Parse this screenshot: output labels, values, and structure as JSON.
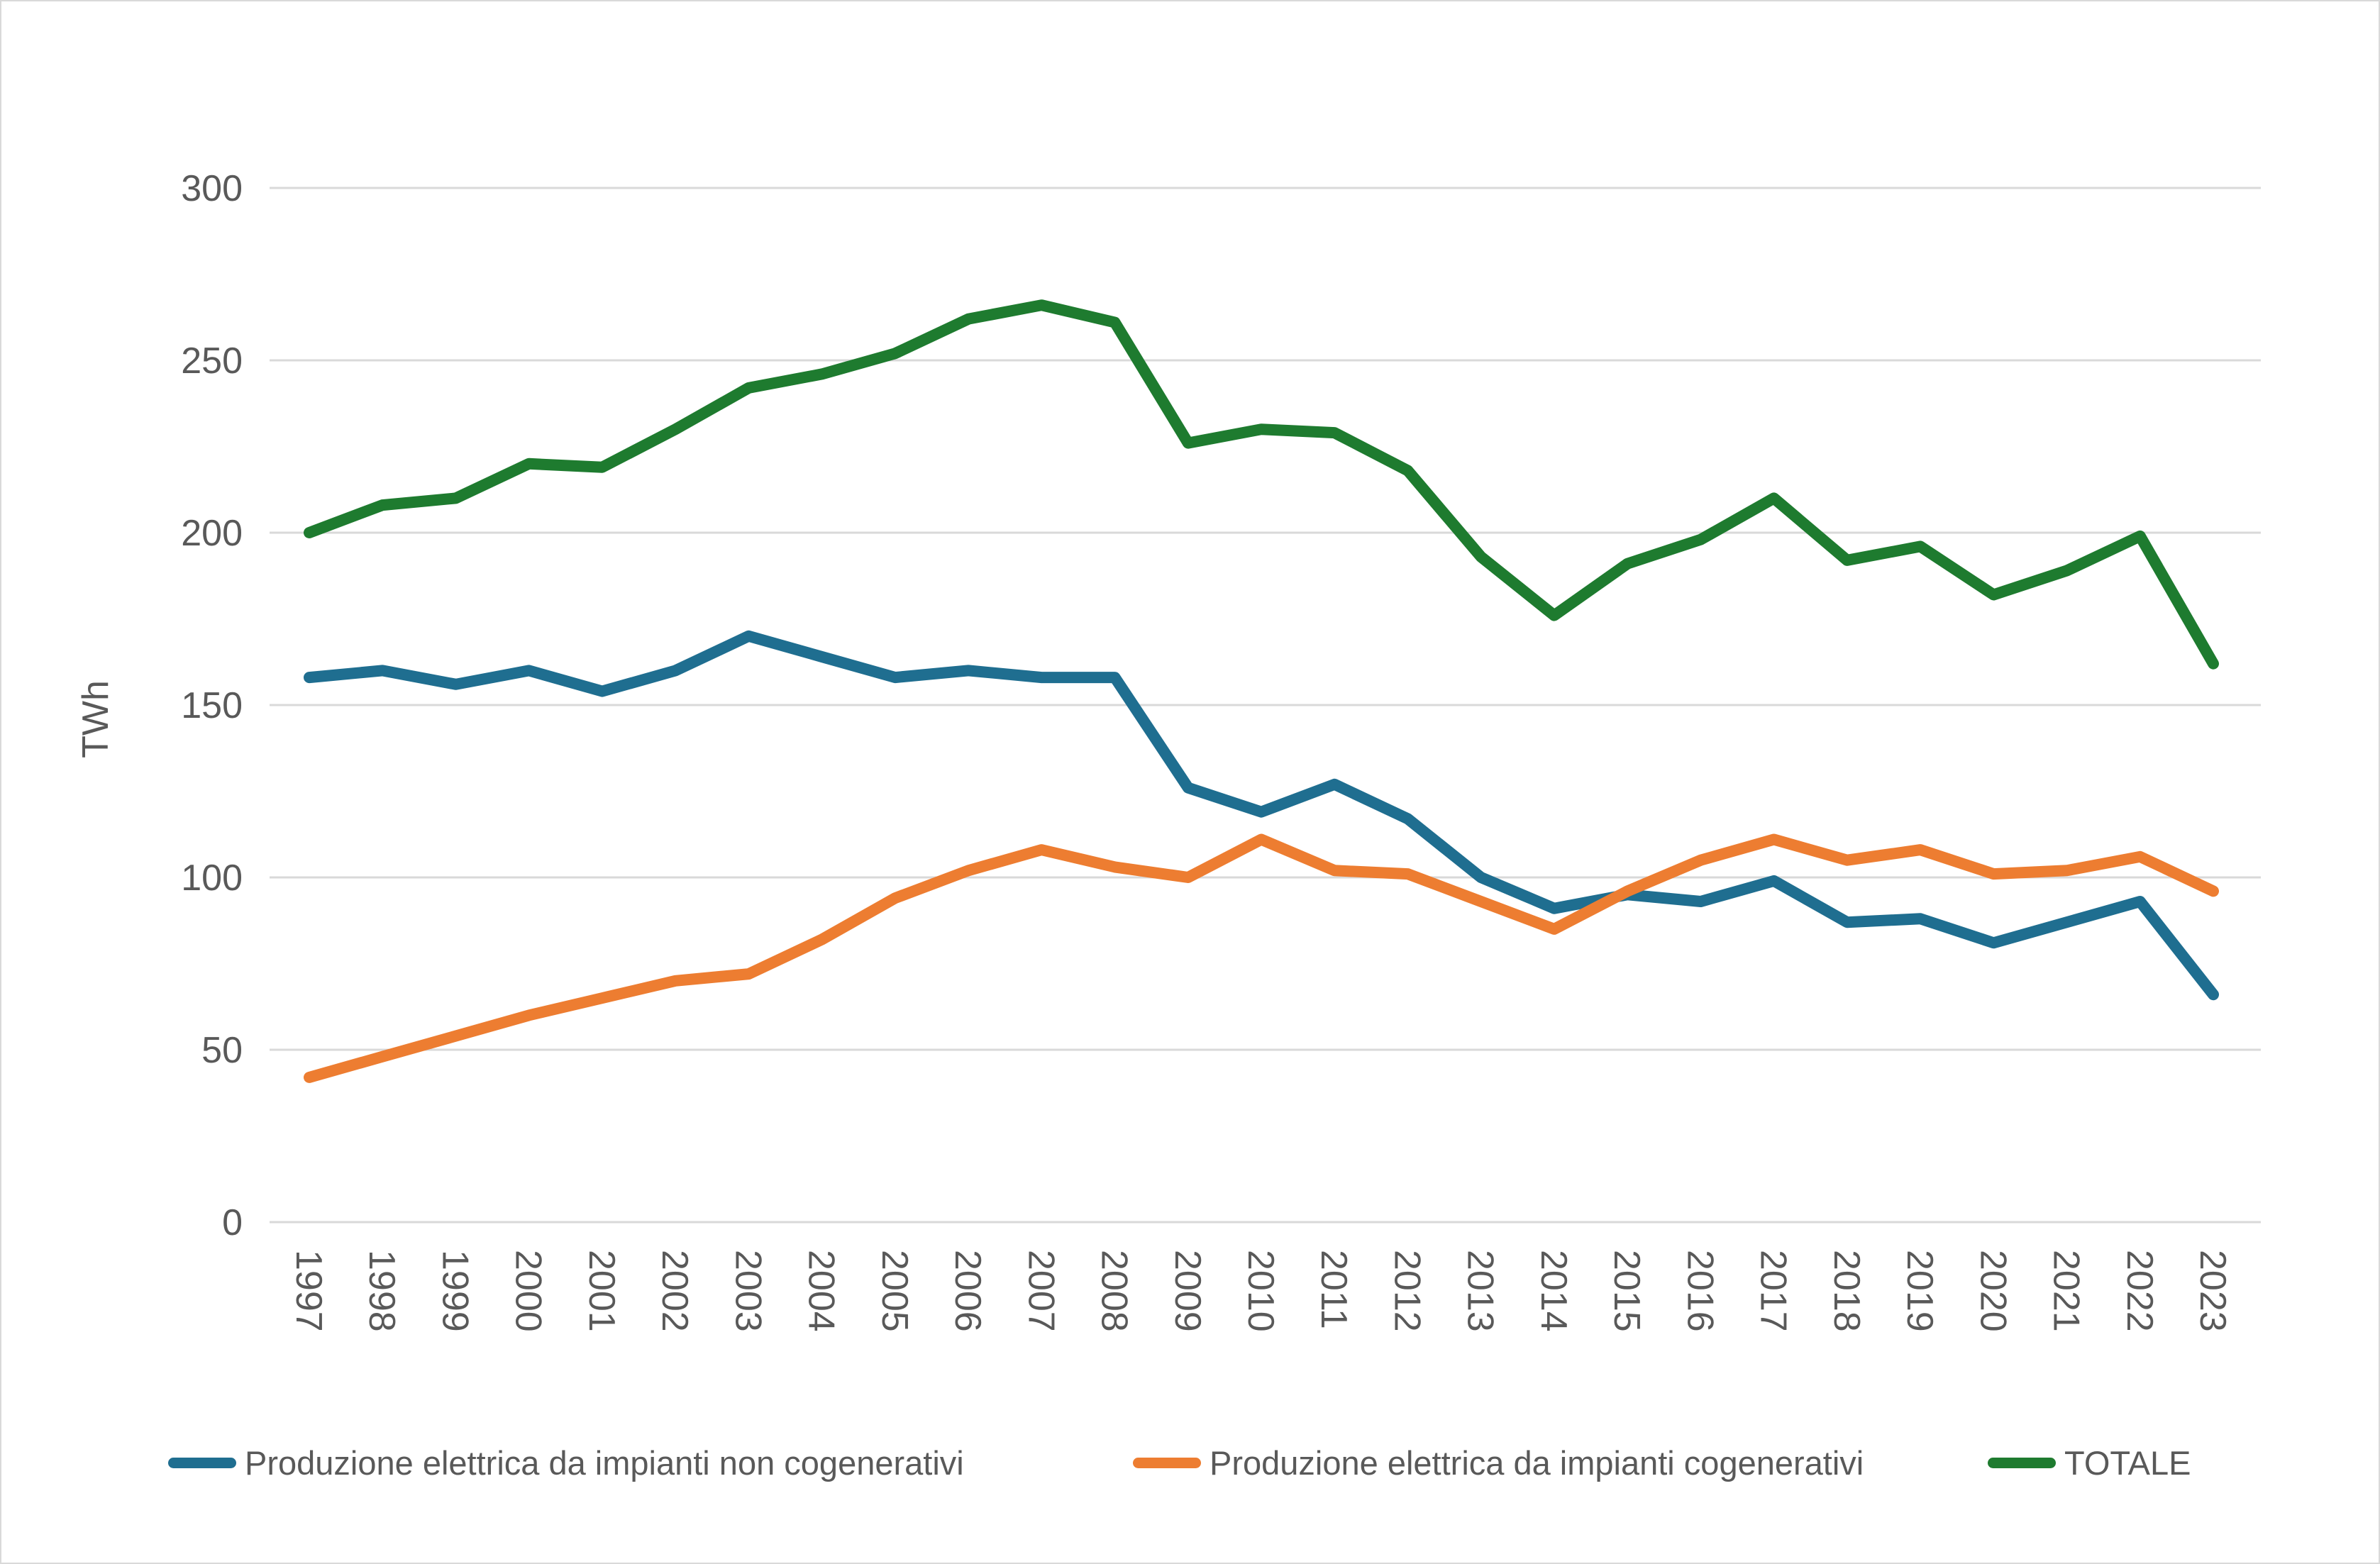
{
  "chart_data": {
    "type": "line",
    "title": "",
    "ylabel": "TWh",
    "xlabel": "",
    "ylim": [
      0,
      300
    ],
    "yticks": [
      0,
      50,
      100,
      150,
      200,
      250,
      300
    ],
    "grid": "horizontal",
    "legend_position": "bottom",
    "axis_text_color": "#595959",
    "gridline_color": "#d9d9d9",
    "x": [
      1997,
      1998,
      1999,
      2000,
      2001,
      2002,
      2003,
      2004,
      2005,
      2006,
      2007,
      2008,
      2009,
      2010,
      2011,
      2012,
      2013,
      2014,
      2015,
      2016,
      2017,
      2018,
      2019,
      2020,
      2021,
      2022,
      2023
    ],
    "series": [
      {
        "name": "Produzione elettrica da impianti non cogenerativi",
        "color": "#1F6E90",
        "values": [
          158,
          160,
          156,
          160,
          154,
          160,
          170,
          164,
          158,
          160,
          158,
          158,
          126,
          119,
          127,
          117,
          100,
          91,
          95,
          93,
          99,
          87,
          88,
          81,
          87,
          93,
          66
        ]
      },
      {
        "name": "Produzione elettrica da impianti cogenerativi",
        "color": "#ED7D31",
        "values": [
          42,
          48,
          54,
          60,
          65,
          70,
          72,
          82,
          94,
          102,
          108,
          103,
          100,
          111,
          102,
          101,
          93,
          85,
          96,
          105,
          111,
          105,
          108,
          101,
          102,
          106,
          96
        ]
      },
      {
        "name": "TOTALE",
        "color": "#1E7B2F",
        "values": [
          200,
          208,
          210,
          220,
          219,
          230,
          242,
          246,
          252,
          262,
          266,
          261,
          226,
          230,
          229,
          218,
          193,
          176,
          191,
          198,
          210,
          192,
          196,
          182,
          189,
          199,
          162
        ]
      }
    ]
  }
}
